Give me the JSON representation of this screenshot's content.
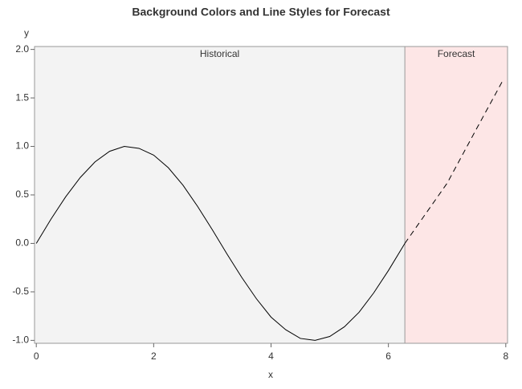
{
  "chart_data": {
    "type": "line",
    "title": "Background Colors and Line Styles for Forecast",
    "x_label": "x",
    "y_label": "y",
    "xlim": [
      -0.03,
      8.03
    ],
    "ylim": [
      -1.03,
      2.03
    ],
    "xticks": [
      0,
      2,
      4,
      6,
      8
    ],
    "yticks": [
      {
        "value": 2,
        "label": "2.0"
      },
      {
        "value": 1.5,
        "label": "1.5"
      },
      {
        "value": 1,
        "label": "1.0"
      },
      {
        "value": 0.5,
        "label": "0.5"
      },
      {
        "value": 0,
        "label": "0.0"
      },
      {
        "value": -0.5,
        "label": "-0.5"
      },
      {
        "value": -1,
        "label": "-1.0"
      }
    ],
    "regions": [
      {
        "label": "Historical",
        "x": [
          -0.03,
          6.28
        ],
        "color": "#f3f3f3"
      },
      {
        "label": "Forecast",
        "x": [
          6.28,
          8.03
        ],
        "color": "#fde6e6"
      }
    ],
    "series": [
      {
        "color": "#000000",
        "line_style": "solid",
        "x": [
          0,
          0.25,
          0.5,
          0.75,
          1,
          1.25,
          1.5,
          1.75,
          2,
          2.25,
          2.5,
          2.75,
          3,
          3.25,
          3.5,
          3.75,
          4,
          4.25,
          4.5,
          4.75,
          5,
          5.25,
          5.5,
          5.75,
          6,
          6.25,
          6.28
        ],
        "values": [
          0,
          0.25,
          0.48,
          0.68,
          0.84,
          0.95,
          1.0,
          0.98,
          0.91,
          0.78,
          0.6,
          0.38,
          0.14,
          -0.11,
          -0.35,
          -0.57,
          -0.76,
          -0.89,
          -0.98,
          -1.0,
          -0.96,
          -0.86,
          -0.71,
          -0.51,
          -0.28,
          -0.03,
          0
        ]
      },
      {
        "color": "#000000",
        "line_style": "dashed",
        "x": [
          6.28,
          7,
          7.5,
          7.95
        ],
        "values": [
          0,
          0.62,
          1.18,
          1.68
        ]
      }
    ]
  }
}
